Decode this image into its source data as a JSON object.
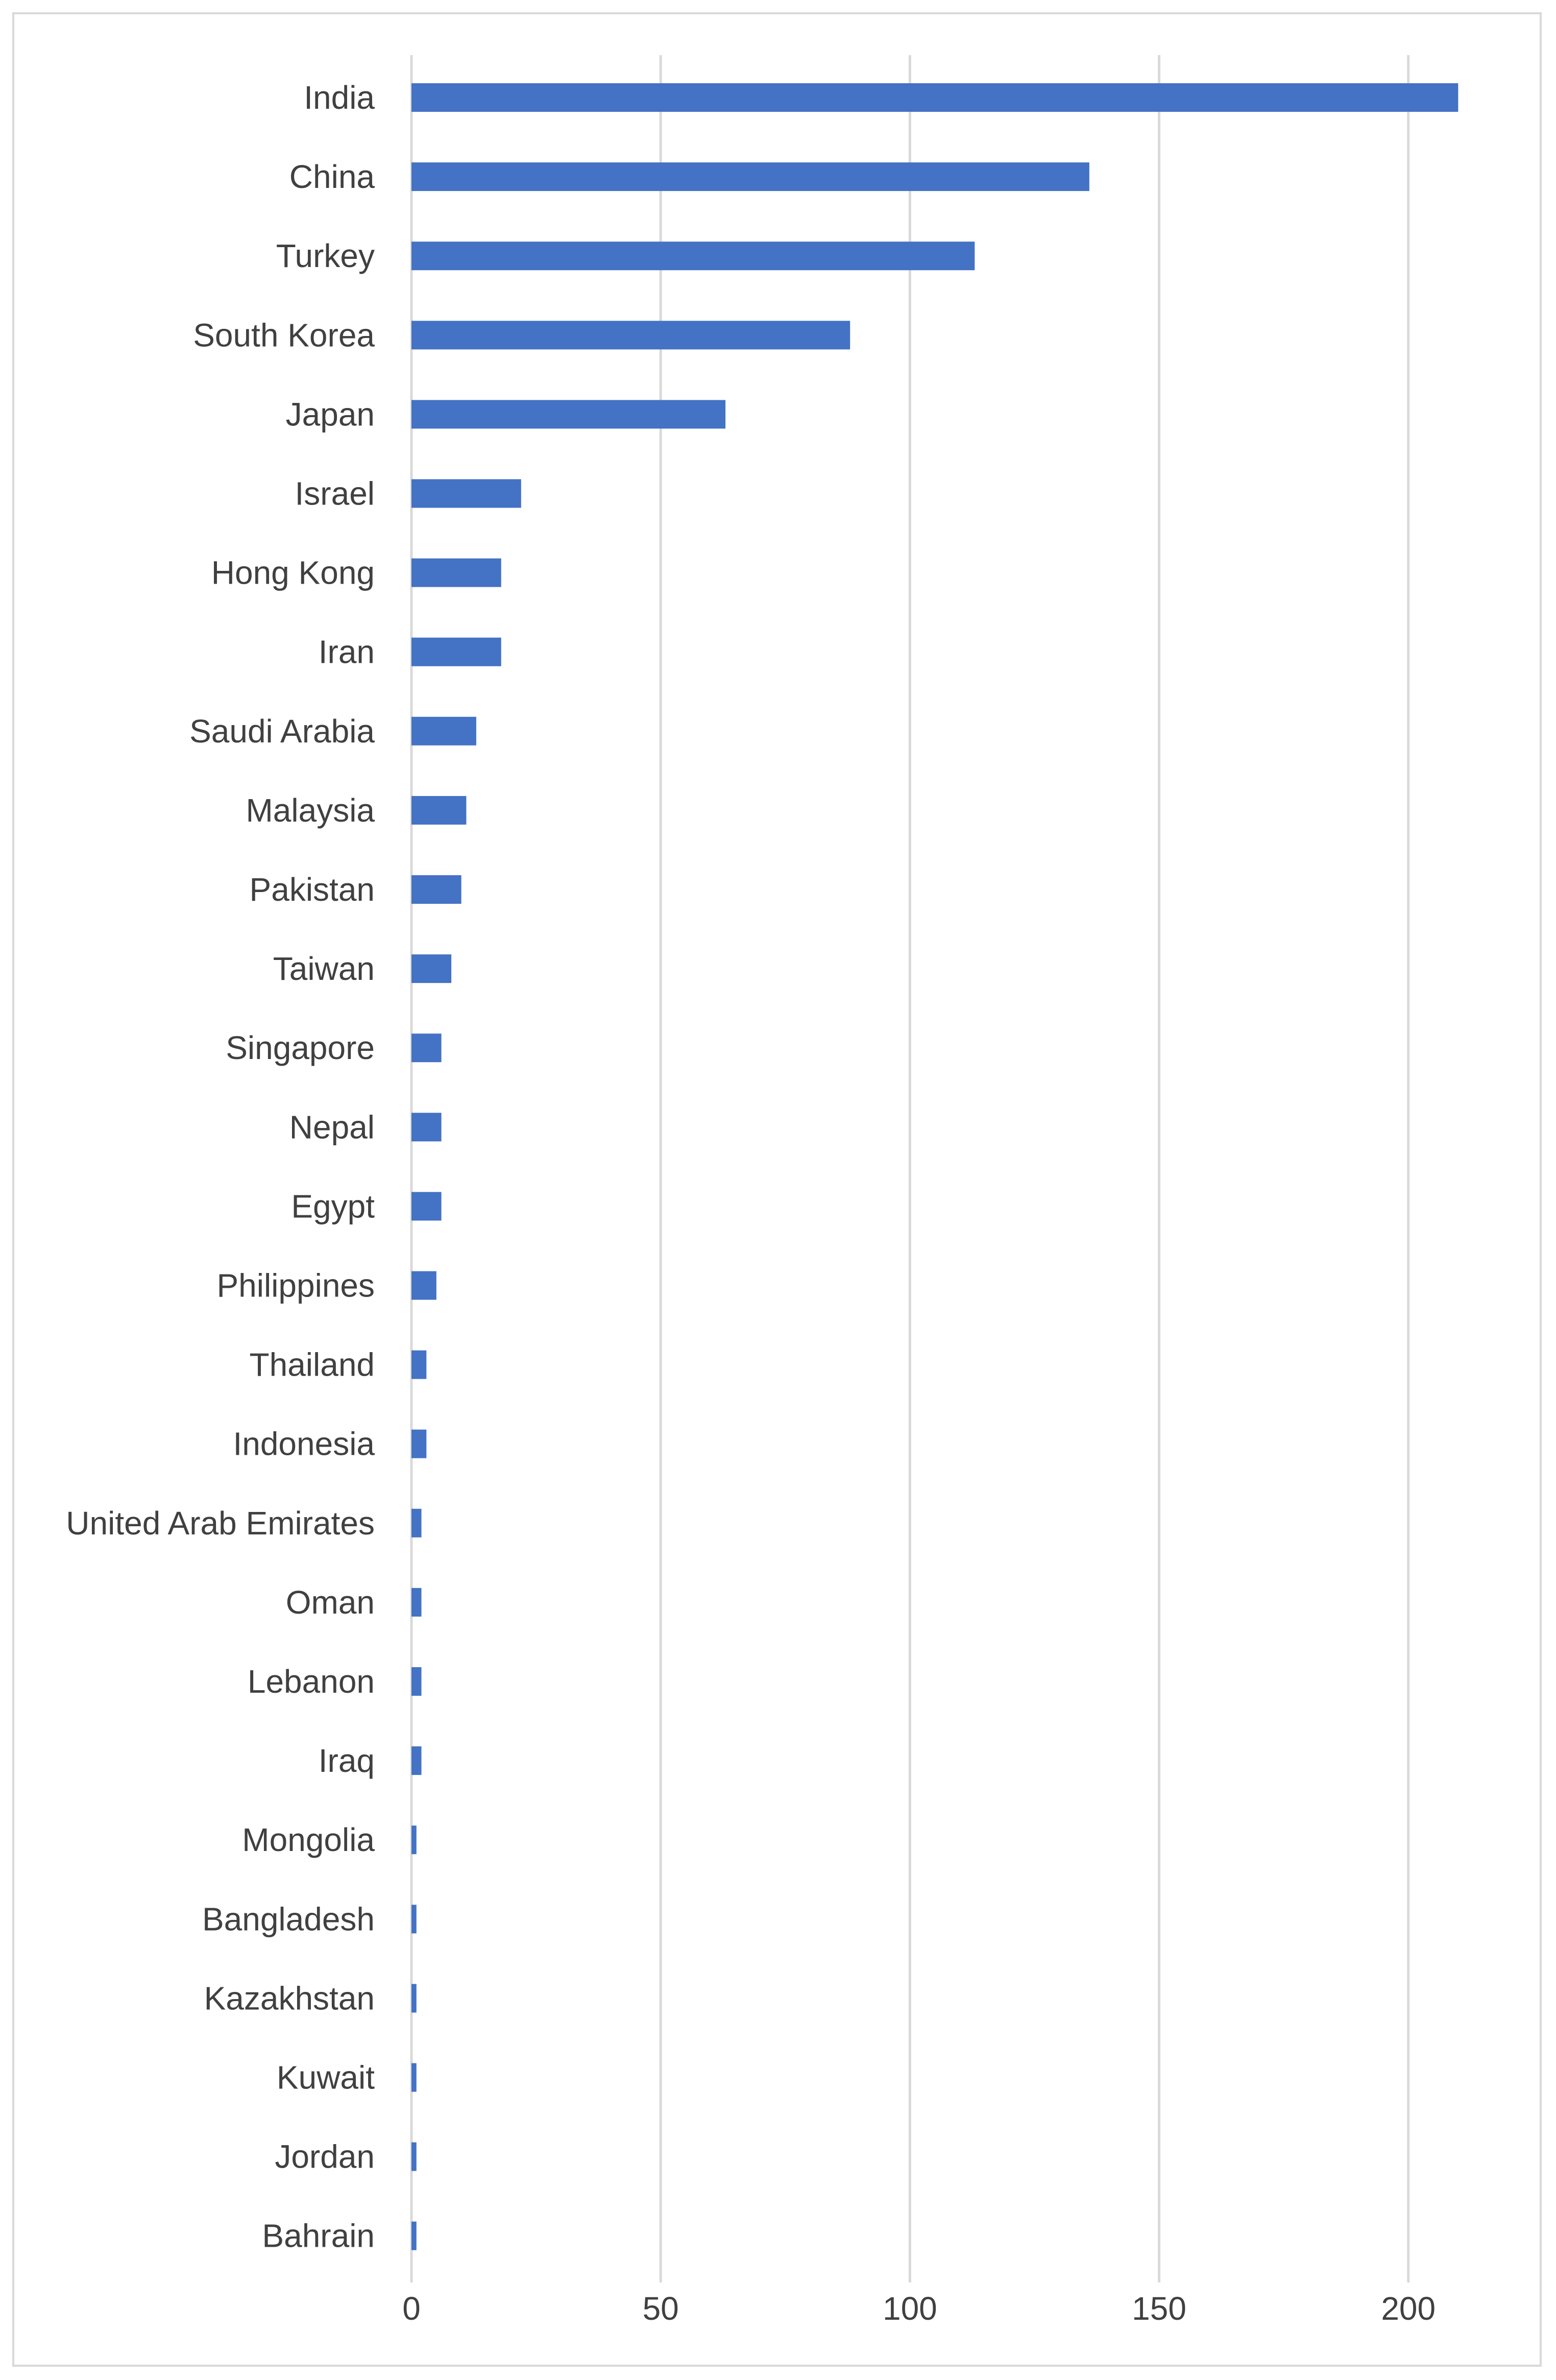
{
  "chart_data": {
    "type": "bar",
    "orientation": "horizontal",
    "title": "",
    "xlabel": "",
    "ylabel": "",
    "categories": [
      "India",
      "China",
      "Turkey",
      "South Korea",
      "Japan",
      "Israel",
      "Hong Kong",
      "Iran",
      "Saudi Arabia",
      "Malaysia",
      "Pakistan",
      "Taiwan",
      "Singapore",
      "Nepal",
      "Egypt",
      "Philippines",
      "Thailand",
      "Indonesia",
      "United Arab Emirates",
      "Oman",
      "Lebanon",
      "Iraq",
      "Mongolia",
      "Bangladesh",
      "Kazakhstan",
      "Kuwait",
      "Jordan",
      "Bahrain"
    ],
    "values": [
      210,
      136,
      113,
      88,
      63,
      22,
      18,
      18,
      13,
      11,
      10,
      8,
      6,
      6,
      6,
      5,
      3,
      3,
      2,
      2,
      2,
      2,
      1,
      1,
      1,
      1,
      1,
      1
    ],
    "xlim": [
      0,
      220
    ],
    "x_ticks": [
      0,
      50,
      100,
      150,
      200
    ],
    "x_tick_labels": [
      "0",
      "50",
      "100",
      "150",
      "200"
    ],
    "grid": "vertical",
    "legend": "none",
    "bar_color": "#4472c4",
    "grid_color": "#d9d9d9",
    "text_color": "#404040"
  }
}
